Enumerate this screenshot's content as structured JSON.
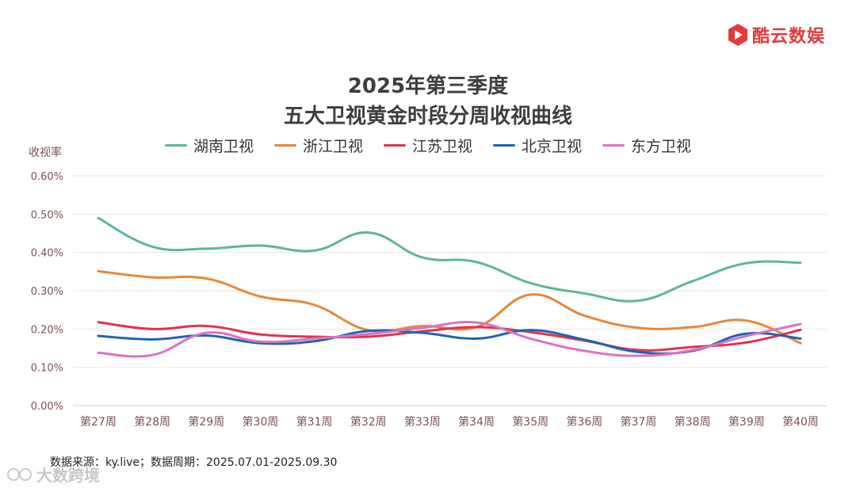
{
  "brand": {
    "name": "酷云数娱",
    "color": "#e4393c"
  },
  "chart_data": {
    "type": "line",
    "title": "2025年第三季度",
    "subtitle": "五大卫视黄金时段分周收视曲线",
    "ylabel": "收视率",
    "xlabel": "",
    "ylim": [
      0,
      0.6
    ],
    "yticks": [
      "0.00%",
      "0.10%",
      "0.20%",
      "0.30%",
      "0.40%",
      "0.50%",
      "0.60%"
    ],
    "categories": [
      "第27周",
      "第28周",
      "第29周",
      "第30周",
      "第31周",
      "第32周",
      "第33周",
      "第34周",
      "第35周",
      "第36周",
      "第37周",
      "第38周",
      "第39周",
      "第40周"
    ],
    "series": [
      {
        "name": "湖南卫视",
        "color": "#5bb88f",
        "values": [
          0.49,
          0.415,
          0.41,
          0.418,
          0.405,
          0.452,
          0.387,
          0.375,
          0.32,
          0.293,
          0.274,
          0.325,
          0.372,
          0.373
        ]
      },
      {
        "name": "浙江卫视",
        "color": "#e8863a",
        "values": [
          0.351,
          0.335,
          0.332,
          0.285,
          0.263,
          0.197,
          0.208,
          0.205,
          0.29,
          0.235,
          0.203,
          0.205,
          0.222,
          0.163
        ]
      },
      {
        "name": "江苏卫视",
        "color": "#e0344c",
        "values": [
          0.218,
          0.2,
          0.208,
          0.186,
          0.18,
          0.18,
          0.194,
          0.205,
          0.192,
          0.17,
          0.145,
          0.153,
          0.165,
          0.198
        ]
      },
      {
        "name": "北京卫视",
        "color": "#1f64b0",
        "values": [
          0.182,
          0.173,
          0.183,
          0.163,
          0.168,
          0.195,
          0.19,
          0.175,
          0.197,
          0.172,
          0.14,
          0.143,
          0.188,
          0.175
        ]
      },
      {
        "name": "东方卫视",
        "color": "#d774c2",
        "values": [
          0.138,
          0.132,
          0.19,
          0.167,
          0.175,
          0.187,
          0.203,
          0.217,
          0.175,
          0.143,
          0.13,
          0.145,
          0.182,
          0.213
        ]
      }
    ],
    "legend_position": "top-center",
    "grid": true
  },
  "footer": {
    "source": "数据来源：ky.live；数据周期：2025.07.01-2025.09.30"
  },
  "watermark": {
    "text": "大数跨境"
  }
}
